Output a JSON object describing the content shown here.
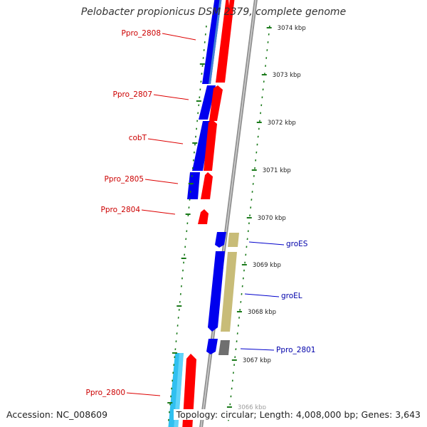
{
  "title": "Pelobacter propionicus DSM 2379, complete genome",
  "footer": {
    "accession": "Accession: NC_008609",
    "summary": "Topology: circular; Length: 4,008,000 bp; Genes: 3,643"
  },
  "colors": {
    "forward_cds": "#ff0000",
    "reverse_cds": "#0000ff",
    "tan_cds": "#c8bc78",
    "gray_cds": "#707070",
    "cyan_cds": "#30c0f0",
    "backbone": "#909090",
    "tick": "#1a7a1a",
    "forward_label": "#cc0000",
    "reverse_label": "#0000aa"
  },
  "ticks": [
    "3074 kbp",
    "3073 kbp",
    "3072 kbp",
    "3071 kbp",
    "3070 kbp",
    "3069 kbp",
    "3068 kbp",
    "3067 kbp",
    "3066 kbp"
  ],
  "gene_labels": [
    {
      "text": "Ppro_2808",
      "strand": "forward"
    },
    {
      "text": "Ppro_2807",
      "strand": "forward"
    },
    {
      "text": "cobT",
      "strand": "forward"
    },
    {
      "text": "Ppro_2805",
      "strand": "forward"
    },
    {
      "text": "Ppro_2804",
      "strand": "forward"
    },
    {
      "text": "groES",
      "strand": "reverse"
    },
    {
      "text": "groEL",
      "strand": "reverse"
    },
    {
      "text": "Ppro_2801",
      "strand": "reverse"
    },
    {
      "text": "Ppro_2800",
      "strand": "forward"
    }
  ]
}
